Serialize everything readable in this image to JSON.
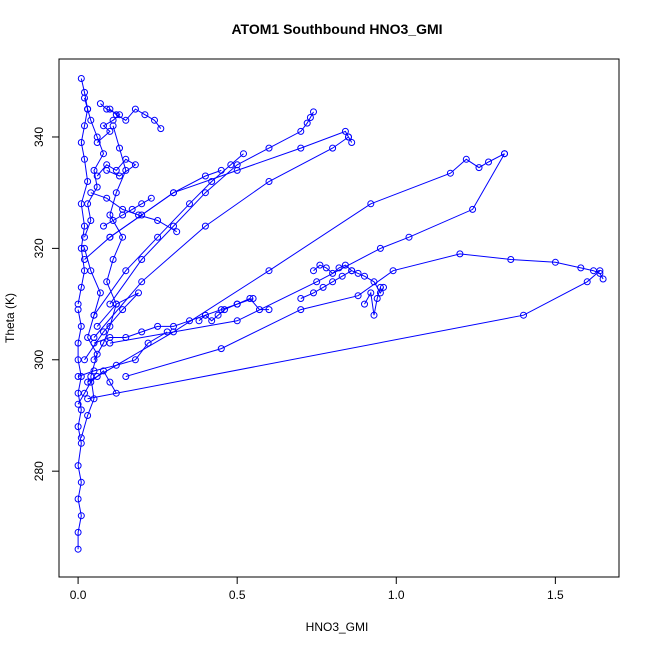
{
  "chart_data": {
    "type": "line",
    "title": "ATOM1 Southbound HNO3_GMI",
    "xlabel": "HNO3_GMI",
    "ylabel": "Theta (K)",
    "xlim": [
      -0.06,
      1.7
    ],
    "ylim": [
      261,
      354
    ],
    "x_ticks": [
      0.0,
      0.5,
      1.0,
      1.5
    ],
    "x_tick_labels": [
      "0.0",
      "0.5",
      "1.0",
      "1.5"
    ],
    "y_ticks": [
      280,
      300,
      320,
      340
    ],
    "y_tick_labels": [
      "280",
      "300",
      "320",
      "340"
    ],
    "grid": false,
    "legend": "none",
    "series_color": "#0000ff",
    "marker": "open-circle",
    "series": [
      {
        "x": [
          0.0,
          0.0,
          0.01,
          0.0,
          0.01,
          0.0,
          0.01,
          0.0,
          0.01,
          0.0,
          0.01,
          0.0,
          0.0,
          0.01,
          0.0
        ],
        "y": [
          266,
          269,
          272,
          275,
          278,
          281,
          285,
          288,
          291,
          294,
          297,
          300,
          303,
          306,
          309
        ]
      },
      {
        "x": [
          0.0,
          0.01,
          0.02,
          0.01,
          0.02,
          0.01,
          0.03,
          0.02,
          0.01,
          0.02,
          0.03,
          0.02,
          0.01
        ],
        "y": [
          310,
          313,
          316,
          320,
          324,
          328,
          332,
          336,
          339,
          342,
          345,
          348,
          350.5
        ]
      },
      {
        "x": [
          0.01,
          0.03,
          0.05,
          0.04,
          0.06,
          0.03,
          0.05,
          0.07,
          0.04,
          0.02
        ],
        "y": [
          286,
          290,
          293,
          297,
          301,
          304,
          308,
          312,
          316,
          320
        ]
      },
      {
        "x": [
          0.02,
          0.04,
          0.03,
          0.06,
          0.05,
          0.08,
          0.06,
          0.04,
          0.03,
          0.02
        ],
        "y": [
          322,
          325,
          328,
          331,
          334,
          337,
          340,
          343,
          345,
          347
        ]
      },
      {
        "x": [
          0.05,
          0.08,
          0.1,
          0.12,
          0.09,
          0.11,
          0.14,
          0.1,
          0.12,
          0.15,
          0.13,
          0.11
        ],
        "y": [
          300,
          303,
          306,
          310,
          314,
          318,
          322,
          326,
          330,
          334,
          338,
          342
        ]
      },
      {
        "x": [
          0.1,
          0.12,
          0.15,
          0.18,
          0.21,
          0.24,
          0.26
        ],
        "y": [
          345,
          344,
          343,
          345,
          344,
          343,
          341.5
        ]
      },
      {
        "x": [
          0.08,
          0.11,
          0.14,
          0.17,
          0.2,
          0.23
        ],
        "y": [
          324,
          325,
          326,
          327,
          328,
          329
        ]
      },
      {
        "x": [
          0.04,
          0.09,
          0.14,
          0.19,
          0.25,
          0.31
        ],
        "y": [
          330,
          329,
          327,
          326,
          325,
          323
        ]
      },
      {
        "x": [
          0.05,
          0.1,
          0.15,
          0.2,
          0.25,
          0.3,
          0.35,
          0.4,
          0.45,
          0.5,
          0.55
        ],
        "y": [
          303,
          304,
          304,
          305,
          306,
          306,
          307,
          308,
          309,
          310,
          311
        ]
      },
      {
        "x": [
          0.02,
          0.1,
          0.2,
          0.3,
          0.4,
          0.45
        ],
        "y": [
          318,
          322,
          326,
          330,
          333,
          334
        ]
      },
      {
        "x": [
          0.05,
          0.15,
          0.25,
          0.35,
          0.42,
          0.48,
          0.52
        ],
        "y": [
          308,
          316,
          322,
          328,
          332,
          335,
          337
        ]
      },
      {
        "x": [
          0.1,
          0.2,
          0.3,
          0.4,
          0.5,
          0.6,
          0.7,
          0.72,
          0.73,
          0.74
        ],
        "y": [
          310,
          318,
          324,
          330,
          335,
          338,
          341,
          342.5,
          343.5,
          344.5
        ]
      },
      {
        "x": [
          0.1,
          0.3,
          0.5,
          0.7,
          0.84,
          0.85,
          0.86
        ],
        "y": [
          322,
          330,
          334,
          338,
          341,
          340,
          339
        ]
      },
      {
        "x": [
          0.05,
          0.2,
          0.4,
          0.6,
          0.8,
          0.85
        ],
        "y": [
          304,
          314,
          324,
          332,
          338,
          340
        ]
      },
      {
        "x": [
          0.38,
          0.4,
          0.42,
          0.44,
          0.46,
          0.5,
          0.54,
          0.57,
          0.6
        ],
        "y": [
          307,
          308,
          307,
          308,
          309,
          310,
          311,
          309,
          309
        ]
      },
      {
        "x": [
          0.03,
          0.3,
          0.6,
          0.92,
          1.17,
          1.22,
          1.26,
          1.29,
          1.34
        ],
        "y": [
          296,
          305,
          316,
          328,
          333.5,
          336,
          334.5,
          335.5,
          337
        ]
      },
      {
        "x": [
          0.1,
          0.5,
          0.75,
          0.95,
          1.04,
          1.24,
          1.34
        ],
        "y": [
          303,
          307,
          314,
          320,
          322,
          327,
          337
        ]
      },
      {
        "x": [
          0.7,
          0.74,
          0.77,
          0.8,
          0.83,
          0.86,
          0.88,
          0.9,
          0.93,
          0.95,
          0.96
        ],
        "y": [
          311,
          312,
          313,
          314,
          315,
          316,
          315.5,
          315,
          314,
          312,
          313
        ]
      },
      {
        "x": [
          0.74,
          0.76,
          0.78,
          0.8,
          0.82,
          0.84,
          0.86
        ],
        "y": [
          316,
          317,
          316.5,
          315.5,
          316.5,
          317,
          316
        ]
      },
      {
        "x": [
          0.9,
          0.92,
          0.93,
          0.94,
          0.95
        ],
        "y": [
          310,
          312,
          308,
          311,
          313
        ]
      },
      {
        "x": [
          0.15,
          0.45,
          0.7,
          0.88,
          0.99,
          1.2,
          1.36,
          1.5,
          1.58,
          1.62,
          1.64,
          1.65
        ],
        "y": [
          297,
          302,
          309,
          311.5,
          316,
          319,
          318,
          317.5,
          316.5,
          316,
          315.5,
          314.5
        ]
      },
      {
        "x": [
          0.03,
          1.4,
          1.6,
          1.64
        ],
        "y": [
          293,
          308,
          314,
          316
        ]
      },
      {
        "x": [
          0.0,
          0.05,
          0.12,
          0.18,
          0.22,
          0.28
        ],
        "y": [
          297,
          298,
          299,
          300,
          303,
          305
        ]
      },
      {
        "x": [
          0.02,
          0.08,
          0.14,
          0.19,
          0.12,
          0.06
        ],
        "y": [
          300,
          305,
          309,
          312,
          310,
          306
        ]
      },
      {
        "x": [
          0.06,
          0.09,
          0.12,
          0.15,
          0.18,
          0.13,
          0.09
        ],
        "y": [
          333,
          335,
          334,
          336,
          335,
          333,
          334
        ]
      },
      {
        "x": [
          0.0,
          0.02,
          0.04,
          0.06,
          0.08,
          0.1,
          0.12
        ],
        "y": [
          292,
          294,
          296,
          297,
          298,
          296,
          294
        ]
      },
      {
        "x": [
          0.06,
          0.1,
          0.08,
          0.11,
          0.13,
          0.09,
          0.07
        ],
        "y": [
          339,
          341,
          342,
          343,
          344,
          345,
          346
        ]
      }
    ]
  }
}
